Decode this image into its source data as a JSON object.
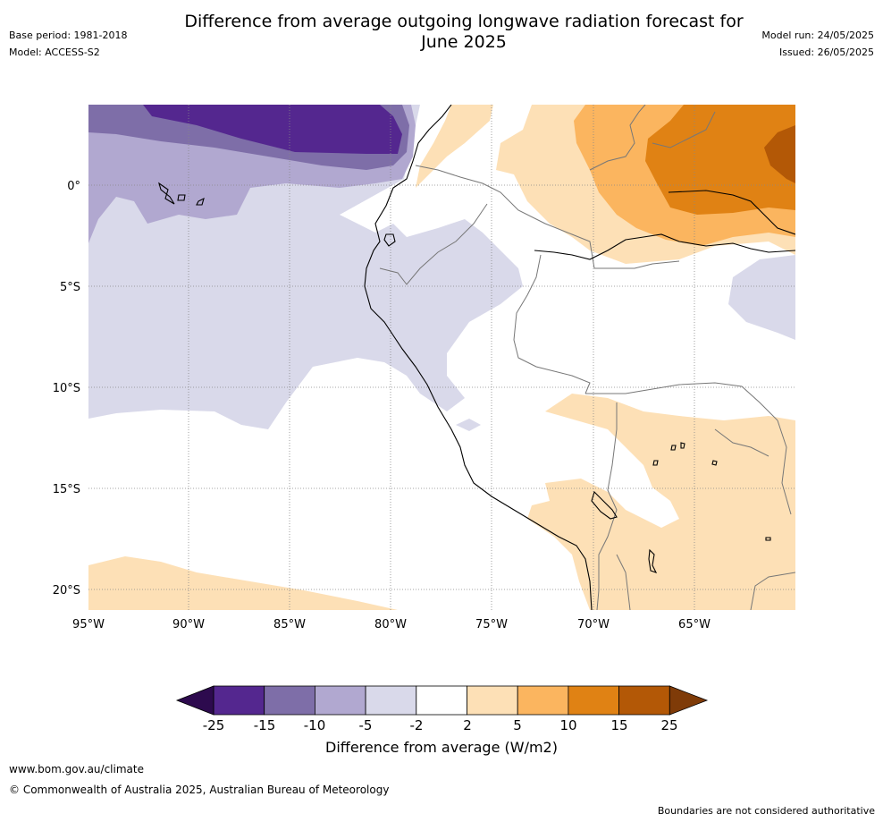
{
  "title": "Difference from average outgoing longwave radiation forecast for\nJune 2025",
  "meta_left": {
    "base_period": "Base period: 1981-2018",
    "model": "Model: ACCESS-S2"
  },
  "meta_right": {
    "model_run": "Model run: 24/05/2025",
    "issued": "Issued: 26/05/2025"
  },
  "map": {
    "lon_labels": [
      "95°W",
      "90°W",
      "85°W",
      "80°W",
      "75°W",
      "70°W",
      "65°W"
    ],
    "lat_labels": [
      "0°",
      "5°S",
      "10°S",
      "15°S",
      "20°S"
    ]
  },
  "colorbar": {
    "title": "Difference from average (W/m2)",
    "ticks": [
      "-25",
      "-15",
      "-10",
      "-5",
      "-2",
      "2",
      "5",
      "10",
      "15",
      "25"
    ],
    "colors": {
      "below_-25": "#2d0a4e",
      "-25_-15": "#54278f",
      "-15_-10": "#7e6ea8",
      "-10_-5": "#b1a8d0",
      "-5_-2": "#d9d9ea",
      "-2_2": "#ffffff",
      "2_5": "#fde0b6",
      "5_10": "#fbb55f",
      "10_15": "#e08214",
      "15_25": "#b35806",
      "above_25": "#7f3b08"
    }
  },
  "footer": {
    "url": "www.bom.gov.au/climate",
    "copyright": "© Commonwealth of Australia 2025, Australian Bureau of Meteorology",
    "note": "Boundaries are not considered authoritative"
  }
}
